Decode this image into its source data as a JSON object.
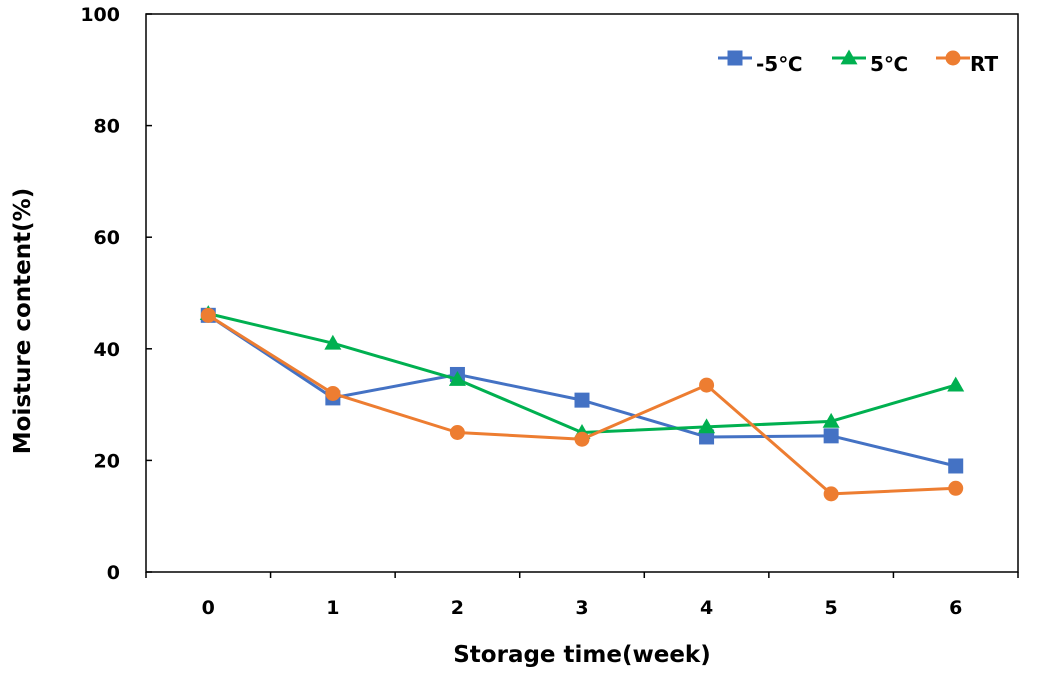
{
  "chart_data": {
    "type": "line",
    "title": "",
    "xlabel": "Storage time(week)",
    "ylabel": "Moisture content(%)",
    "x": [
      0,
      1,
      2,
      3,
      4,
      5,
      6
    ],
    "x_tick_labels": [
      "0",
      "1",
      "2",
      "3",
      "4",
      "5",
      "6"
    ],
    "xlim": [
      -0.5,
      6.5
    ],
    "ylim": [
      0,
      100
    ],
    "y_ticks": [
      0,
      20,
      40,
      60,
      80,
      100
    ],
    "y_tick_labels": [
      "0",
      "20",
      "40",
      "60",
      "80",
      "100"
    ],
    "grid": false,
    "legend_position": "top-right",
    "series": [
      {
        "name": "-5℃",
        "color": "#4472C4",
        "marker": "square",
        "values": [
          46.0,
          31.2,
          35.4,
          30.8,
          24.2,
          24.4,
          19.0
        ]
      },
      {
        "name": "5℃",
        "color": "#00B050",
        "marker": "triangle",
        "values": [
          46.3,
          41.0,
          34.5,
          25.0,
          26.0,
          27.0,
          33.5
        ]
      },
      {
        "name": "RT",
        "color": "#ED7D31",
        "marker": "circle",
        "values": [
          46.0,
          32.0,
          25.0,
          23.8,
          33.5,
          14.0,
          15.0
        ]
      }
    ]
  }
}
